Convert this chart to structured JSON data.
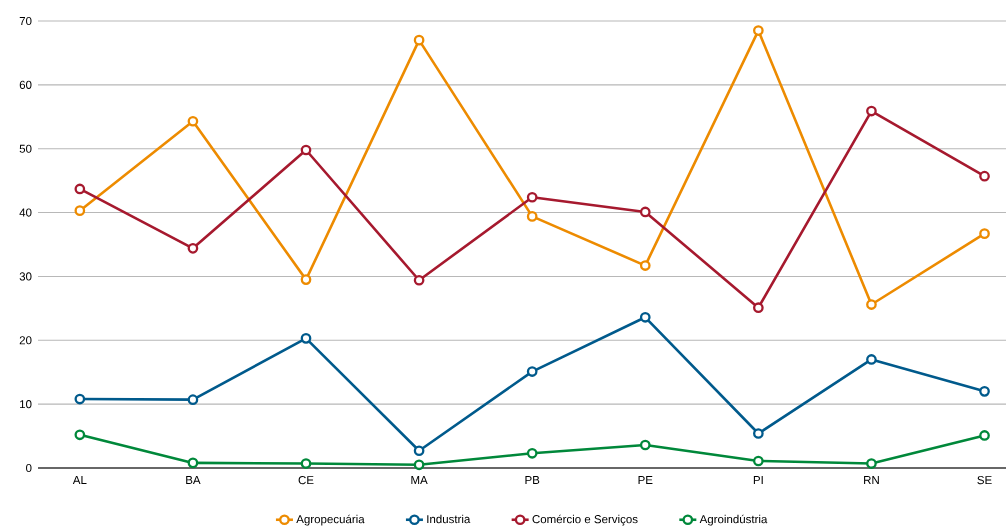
{
  "chart_data": {
    "type": "line",
    "categories": [
      "AL",
      "BA",
      "CE",
      "MA",
      "PB",
      "PE",
      "PI",
      "RN",
      "SE"
    ],
    "series": [
      {
        "name": "Agropecuária",
        "color": "#ed8b00",
        "values": [
          40.3,
          54.3,
          29.5,
          67.0,
          39.4,
          31.7,
          68.5,
          25.6,
          36.7
        ]
      },
      {
        "name": "Industria",
        "color": "#005a8c",
        "values": [
          10.8,
          10.7,
          20.3,
          2.7,
          15.1,
          23.6,
          5.4,
          17.0,
          12.0
        ]
      },
      {
        "name": "Comércio e Serviços",
        "color": "#a6192e",
        "values": [
          43.7,
          34.4,
          49.8,
          29.4,
          42.4,
          40.1,
          25.1,
          55.9,
          45.7
        ]
      },
      {
        "name": "Agroindústria",
        "color": "#00883a",
        "values": [
          5.2,
          0.8,
          0.7,
          0.5,
          2.3,
          3.6,
          1.1,
          0.7,
          5.1
        ]
      }
    ],
    "ylim": [
      0,
      70
    ],
    "yticks": [
      0,
      10,
      20,
      30,
      40,
      50,
      60,
      70
    ],
    "grid": "y",
    "legend": "bottom",
    "marker": "circle",
    "line_style": "solid"
  }
}
